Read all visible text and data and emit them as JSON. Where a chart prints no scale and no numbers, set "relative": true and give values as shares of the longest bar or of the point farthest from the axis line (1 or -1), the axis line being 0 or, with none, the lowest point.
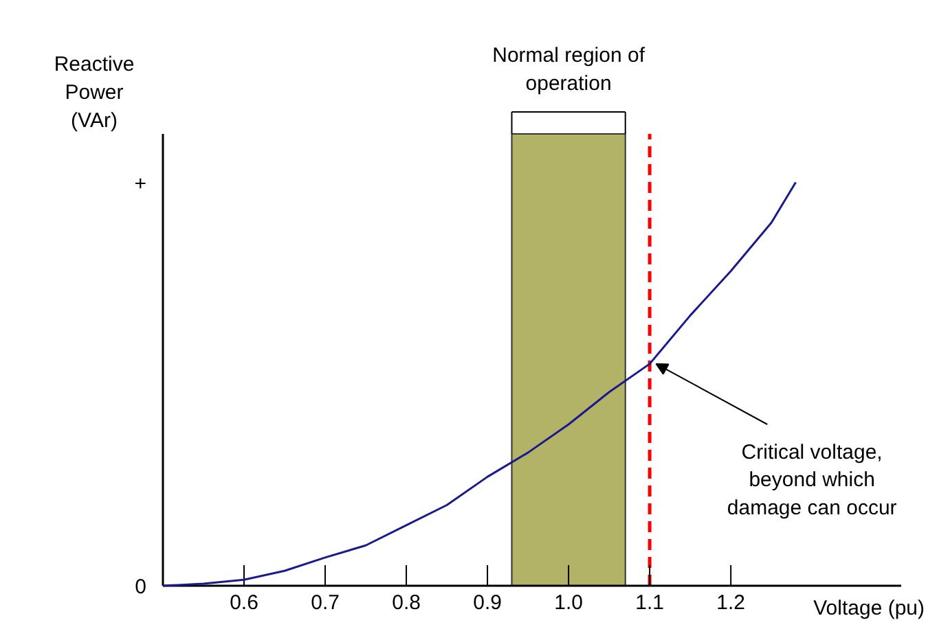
{
  "chart_data": {
    "type": "line",
    "relative": true,
    "xlabel": "Voltage (pu)",
    "ylabel": "Reactive Power (VAr)",
    "x": [
      0.5,
      0.55,
      0.6,
      0.65,
      0.7,
      0.75,
      0.8,
      0.85,
      0.9,
      0.95,
      1.0,
      1.05,
      1.1,
      1.15,
      1.2,
      1.25,
      1.28
    ],
    "series": [
      {
        "color": "#1a1a8c",
        "values": [
          0,
          0.005,
          0.015,
          0.037,
          0.07,
          0.1,
          0.15,
          0.2,
          0.27,
          0.33,
          0.4,
          0.48,
          0.55,
          0.67,
          0.78,
          0.9,
          1.0
        ]
      }
    ],
    "xlim": [
      0.5,
      1.41
    ],
    "xticks": [
      0.6,
      0.7,
      0.8,
      0.9,
      {
        "value": 1.0,
        "label": "1.0"
      },
      1.1,
      1.2
    ],
    "bands": [
      {
        "axis": "x",
        "from": 0.93,
        "to": 1.07,
        "label": "Normal region of operation",
        "color": "#b3b367"
      }
    ],
    "ref_lines": [
      {
        "axis": "x",
        "value": 1.1,
        "color": "#ff0000",
        "line_style": "dashed"
      }
    ],
    "annotations": [
      {
        "text": "Critical voltage, beyond which damage can occur",
        "x": 1.1,
        "y": 0.55
      },
      "0",
      "+"
    ],
    "grid": false,
    "tick_labels": "x",
    "marker": "none",
    "line_style": "solid"
  }
}
